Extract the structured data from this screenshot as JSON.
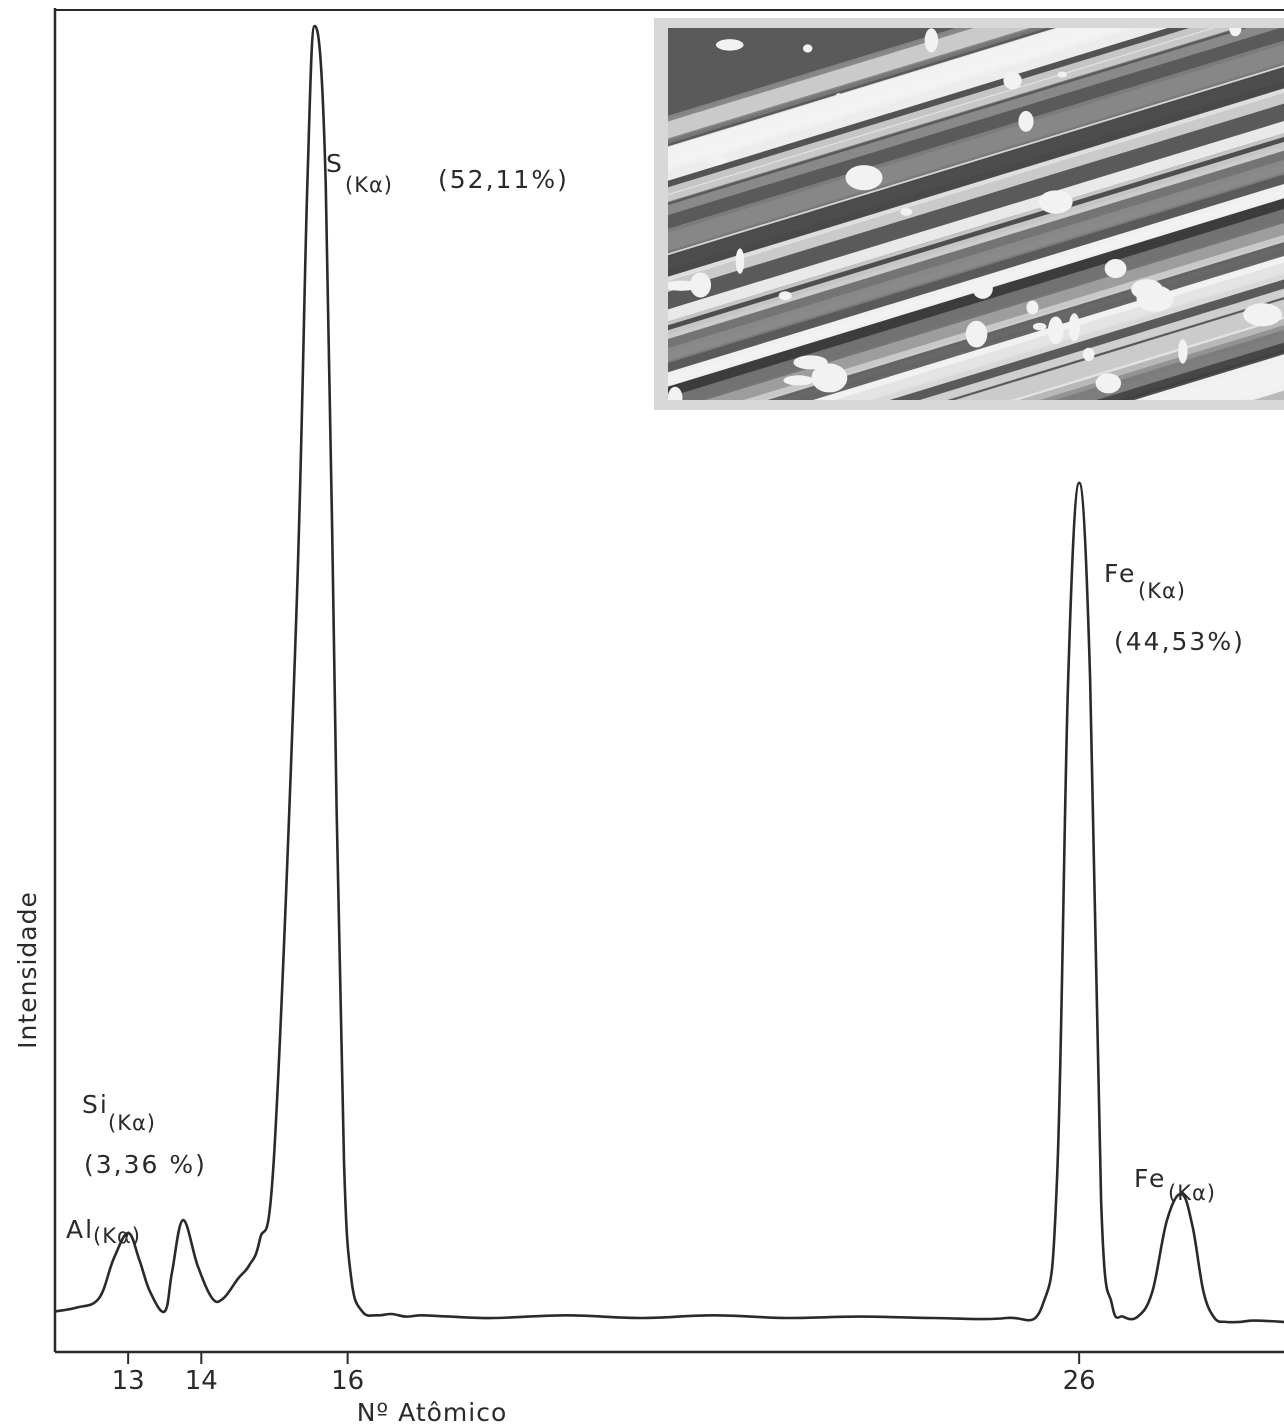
{
  "chart_data": {
    "type": "line",
    "xlabel": "Nº Atômico",
    "ylabel": "Intensidade",
    "xlim": [
      12.0,
      28.8
    ],
    "ylim": [
      0,
      100
    ],
    "x_ticks": [
      13,
      14,
      16,
      26
    ],
    "grid": false,
    "series": [
      {
        "x": [
          12.0,
          12.3,
          12.6,
          12.8,
          13.0,
          13.15,
          13.3,
          13.5,
          13.6,
          13.75,
          13.95,
          14.15,
          14.3,
          14.5,
          14.65,
          14.8,
          15.0,
          15.3,
          15.45,
          15.55,
          15.7,
          15.85,
          15.95,
          16.05,
          16.2,
          16.4,
          16.6,
          16.8,
          17.0,
          17.4,
          18,
          19,
          20,
          21,
          22,
          23,
          24,
          25,
          25.5,
          25.7,
          25.85,
          26.0,
          26.15,
          26.3,
          26.45,
          26.6,
          26.8,
          27.0,
          27.2,
          27.4,
          27.55,
          27.7,
          27.85,
          28.0,
          28.2,
          28.4,
          28.8
        ],
        "y": [
          1.5,
          1.8,
          2.5,
          5.5,
          7.5,
          5.5,
          3.0,
          1.5,
          4.5,
          8.5,
          5.0,
          2.5,
          2.5,
          4.0,
          5.0,
          7.0,
          14.0,
          55.0,
          88.0,
          100.0,
          88.0,
          40.0,
          13.0,
          4.0,
          1.5,
          1.2,
          1.3,
          1.1,
          1.2,
          1.1,
          1.0,
          1.2,
          1.0,
          1.2,
          1.0,
          1.1,
          1.0,
          1.0,
          2.0,
          12.0,
          50.0,
          65.0,
          50.0,
          10.0,
          2.0,
          1.1,
          1.1,
          3.0,
          8.5,
          10.5,
          8.0,
          3.0,
          1.0,
          0.7,
          0.7,
          0.8,
          0.7
        ]
      }
    ],
    "annotations": [
      {
        "element": "S",
        "line": "(Kα)",
        "value": "(52,11%)"
      },
      {
        "element": "Fe",
        "line": "(Kα)",
        "value": "(44,53%)"
      },
      {
        "element": "Si",
        "line": "(Kα)",
        "value": "(3,36 %)"
      },
      {
        "element": "Al",
        "line": "(Kα)",
        "value": ""
      },
      {
        "element": "Fe",
        "line": "(Kα)",
        "value": ""
      }
    ]
  },
  "inset": {
    "kind": "micrograph-photo",
    "colors": {
      "light": "#f2f2f2",
      "dark": "#3c3c3c",
      "mid": "#8a8a8a"
    }
  },
  "colors": {
    "line": "#2a2a2a",
    "axis": "#2a2a2a",
    "background": "#ffffff"
  }
}
